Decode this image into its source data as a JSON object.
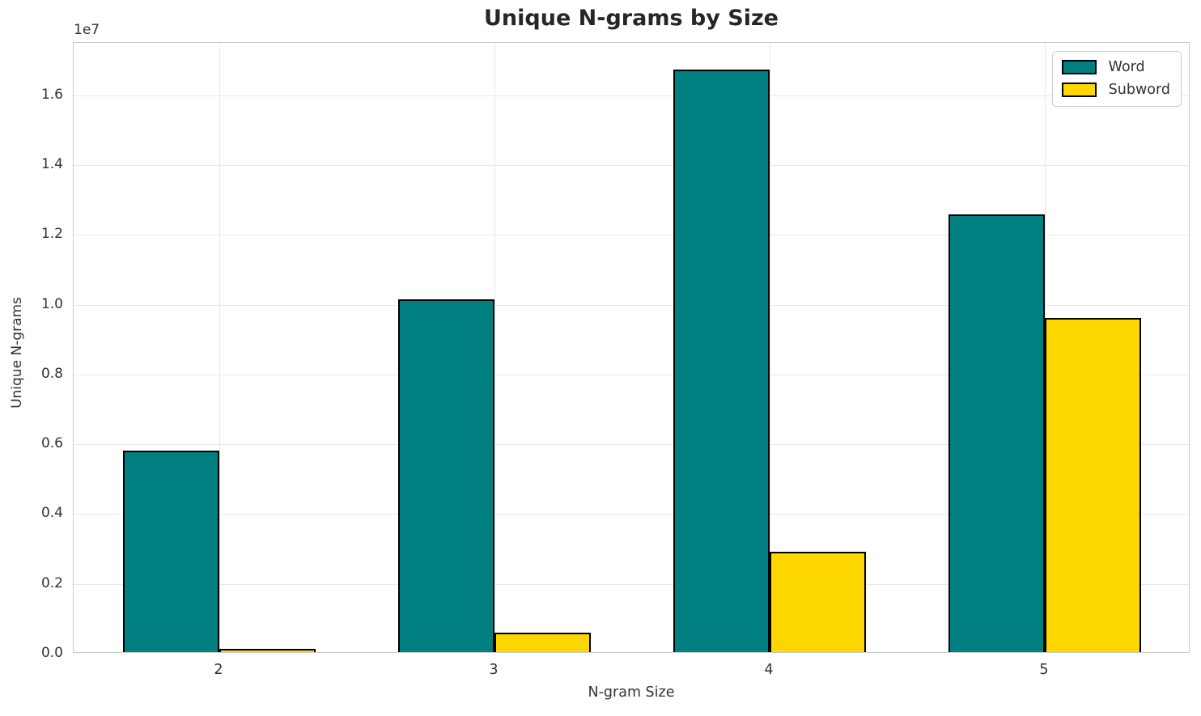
{
  "chart_data": {
    "type": "bar",
    "title": "Unique N-grams by Size",
    "xlabel": "N-gram Size",
    "ylabel": "Unique N-grams",
    "offset_text": "1e7",
    "categories": [
      "2",
      "3",
      "4",
      "5"
    ],
    "series": [
      {
        "name": "Word",
        "color": "#008080",
        "values": [
          5770000,
          10100000,
          16700000,
          12550000
        ]
      },
      {
        "name": "Subword",
        "color": "#FFD700",
        "values": [
          90000,
          550000,
          2870000,
          9570000
        ]
      }
    ],
    "ylim": [
      0,
      17500000
    ],
    "yticks": [
      0,
      2000000,
      4000000,
      6000000,
      8000000,
      10000000,
      12000000,
      14000000,
      16000000
    ],
    "ytick_labels": [
      "0.0",
      "0.2",
      "0.4",
      "0.6",
      "0.8",
      "1.0",
      "1.2",
      "1.4",
      "1.6"
    ],
    "grid": true,
    "legend_position": "upper right",
    "bar_edge_color": "#000000",
    "colors": {
      "grid": "#e8e8e8",
      "spine": "#cbcbcb",
      "tick_text": "#333333",
      "title_text": "#262626"
    }
  }
}
